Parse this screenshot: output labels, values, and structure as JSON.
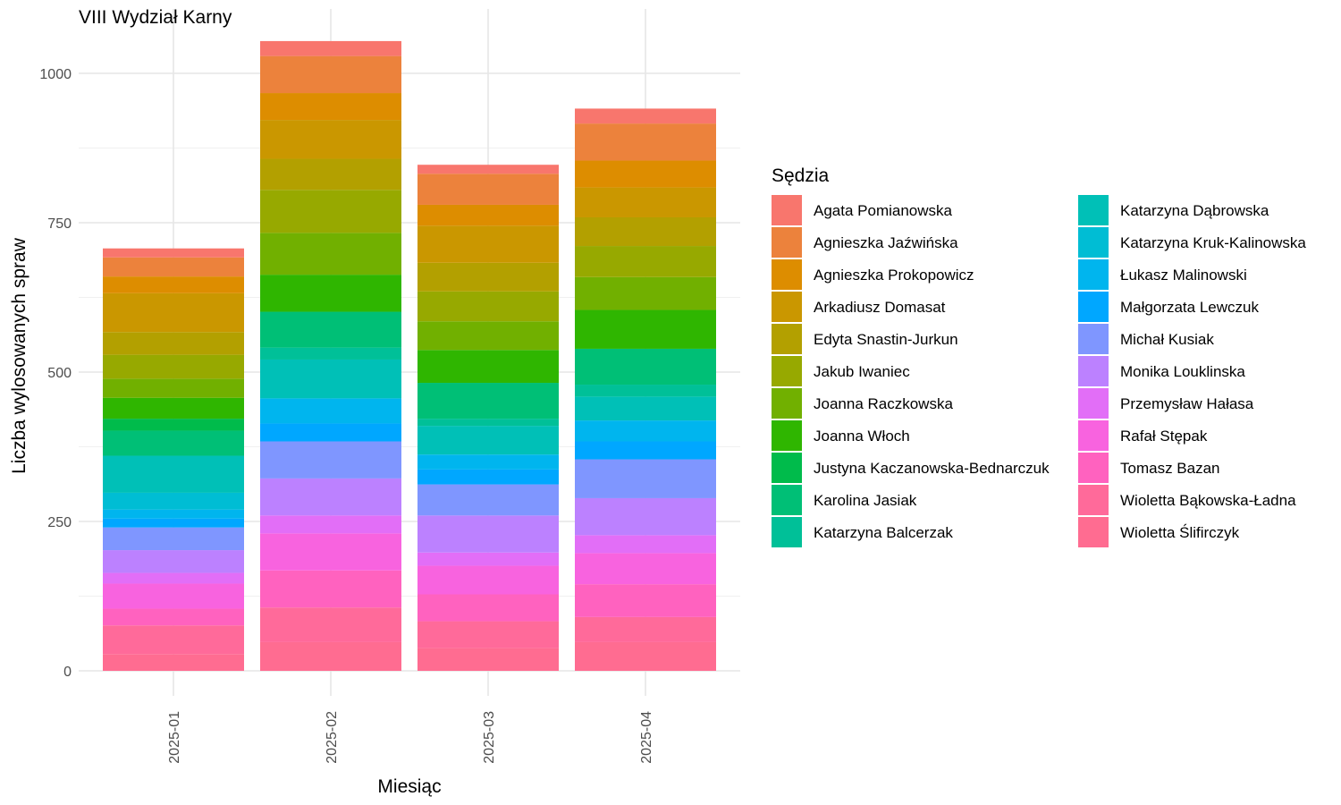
{
  "chart_data": {
    "type": "bar",
    "stacked": true,
    "title": "VIII Wydział Karny",
    "xlabel": "Miesiąc",
    "ylabel": "Liczba wylosowanych spraw",
    "ylim": [
      0,
      1100
    ],
    "yticks": [
      0,
      250,
      500,
      750,
      1000
    ],
    "grid": true,
    "legend_title": "Sędzia",
    "legend_position": "right",
    "categories": [
      "2025-01",
      "2025-02",
      "2025-03",
      "2025-04"
    ],
    "series": [
      {
        "name": "Agata Pomianowska",
        "color": "#F8766D",
        "values": [
          15,
          25,
          15,
          25
        ]
      },
      {
        "name": "Agnieszka Jaźwińska",
        "color": "#EC823C",
        "values": [
          32,
          62,
          52,
          62
        ]
      },
      {
        "name": "Agnieszka Prokopowicz",
        "color": "#DD8D00",
        "values": [
          28,
          45,
          35,
          45
        ]
      },
      {
        "name": "Arkadiusz Domasat",
        "color": "#CA9700",
        "values": [
          65,
          65,
          62,
          50
        ]
      },
      {
        "name": "Edyta Snastin-Jurkun",
        "color": "#B3A000",
        "values": [
          38,
          52,
          48,
          48
        ]
      },
      {
        "name": "Jakub Iwaniec",
        "color": "#97A900",
        "values": [
          40,
          72,
          50,
          52
        ]
      },
      {
        "name": "Joanna Raczkowska",
        "color": "#71B000",
        "values": [
          32,
          70,
          48,
          55
        ]
      },
      {
        "name": "Joanna Włoch",
        "color": "#2FB600",
        "values": [
          35,
          62,
          55,
          65
        ]
      },
      {
        "name": "Justyna Kaczanowska-Bednarczuk",
        "color": "#00BB4B",
        "values": [
          20,
          0,
          0,
          0
        ]
      },
      {
        "name": "Karolina Jasiak",
        "color": "#00BF76",
        "values": [
          42,
          60,
          60,
          60
        ]
      },
      {
        "name": "Katarzyna Balcerzak",
        "color": "#00C098",
        "values": [
          0,
          20,
          12,
          20
        ]
      },
      {
        "name": "Katarzyna Dąbrowska",
        "color": "#00C0B7",
        "values": [
          62,
          65,
          48,
          40
        ]
      },
      {
        "name": "Katarzyna Kruk-Kalinowska",
        "color": "#00BDD4",
        "values": [
          28,
          0,
          0,
          0
        ]
      },
      {
        "name": "Łukasz Malinowski",
        "color": "#00B5EE",
        "values": [
          15,
          42,
          25,
          35
        ]
      },
      {
        "name": "Małgorzata Lewczuk",
        "color": "#00A7FF",
        "values": [
          15,
          30,
          25,
          30
        ]
      },
      {
        "name": "Michał Kusiak",
        "color": "#7F96FF",
        "values": [
          38,
          62,
          52,
          65
        ]
      },
      {
        "name": "Monika Louklinska",
        "color": "#BC81FF",
        "values": [
          38,
          62,
          62,
          62
        ]
      },
      {
        "name": "Przemysław Hałasa",
        "color": "#E26EF7",
        "values": [
          18,
          30,
          22,
          30
        ]
      },
      {
        "name": "Rafał Stępak",
        "color": "#F863DF",
        "values": [
          42,
          62,
          48,
          52
        ]
      },
      {
        "name": "Tomasz Bazan",
        "color": "#FF62BF",
        "values": [
          28,
          62,
          45,
          55
        ]
      },
      {
        "name": "Wioletta Bąkowska-Ładna",
        "color": "#FF6A9A",
        "values": [
          48,
          58,
          45,
          42
        ]
      },
      {
        "name": "Wioletta Ślifirczyk",
        "color": "#FF6C91",
        "values": [
          28,
          48,
          38,
          48
        ]
      }
    ]
  }
}
